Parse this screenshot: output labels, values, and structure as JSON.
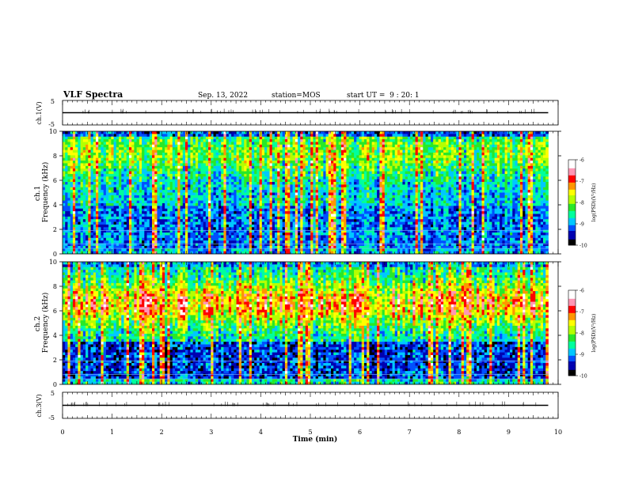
{
  "header": {
    "title": "VLF Spectra",
    "date": "Sep. 13, 2022",
    "station": "station=MOS",
    "start_ut": "start UT =  9 : 20: 1"
  },
  "chart_data": [
    {
      "type": "line",
      "panel": "ch1-waveform",
      "ylabel": "ch.1(V)",
      "ylim": [
        -5,
        5
      ],
      "yticks": [
        "5",
        "-5"
      ],
      "series": [
        {
          "values": [
            0
          ]
        }
      ]
    },
    {
      "type": "heatmap",
      "panel": "ch1-spectrogram",
      "ylabel": "ch.1\nFrequency (kHz)",
      "ylim": [
        0,
        10
      ],
      "yticks": [
        "0",
        "2",
        "4",
        "6",
        "8",
        "10"
      ],
      "colorbar": {
        "label": "log(PSD)(V²/Hz)",
        "range": [
          -10,
          -6
        ],
        "ticks": [
          "-6",
          "-7",
          "-8",
          "-9",
          "-10"
        ]
      },
      "emission_band_khz": [
        0.5,
        9.5
      ]
    },
    {
      "type": "heatmap",
      "panel": "ch2-spectrogram",
      "ylabel": "ch.2\nFrequency (kHz)",
      "ylim": [
        0,
        10
      ],
      "yticks": [
        "0",
        "2",
        "4",
        "6",
        "8",
        "10"
      ],
      "colorbar": {
        "label": "log(PSD)(V²/Hz)",
        "range": [
          -10,
          -6
        ],
        "ticks": [
          "-6",
          "-7",
          "-8",
          "-9",
          "-10"
        ]
      },
      "emission_band_khz": [
        3.5,
        9
      ]
    },
    {
      "type": "line",
      "panel": "ch3-waveform",
      "ylabel": "ch.3(V)",
      "ylim": [
        -5,
        5
      ],
      "yticks": [
        "5",
        "-5"
      ],
      "series": [
        {
          "values": [
            0
          ]
        }
      ]
    }
  ],
  "xaxis": {
    "label": "Time (min)",
    "xlim": [
      0,
      10
    ],
    "ticks": [
      "0",
      "1",
      "2",
      "3",
      "4",
      "5",
      "6",
      "7",
      "8",
      "9",
      "10"
    ],
    "data_end": 9.8
  },
  "colors": {
    "colormap": [
      "#000000",
      "#0000b0",
      "#0050ff",
      "#00c8ff",
      "#00ff9c",
      "#28e828",
      "#b4ff00",
      "#ffff00",
      "#ff9600",
      "#ff0000",
      "#ff96b4",
      "#ffffff"
    ],
    "axis": "#000000"
  }
}
